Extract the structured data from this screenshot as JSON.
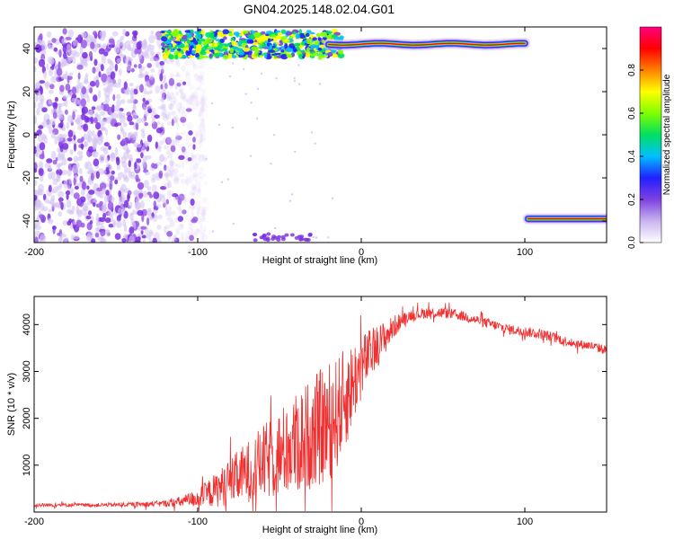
{
  "title": "GN04.2025.148.02.04.G01",
  "chart_data": [
    {
      "type": "heatmap",
      "title": "GN04.2025.148.02.04.G01",
      "xlabel": "Height of straight line (km)",
      "ylabel": "Frequency (Hz)",
      "xlim": [
        -200,
        150
      ],
      "ylim": [
        -50,
        50
      ],
      "x_ticks": [
        -200,
        -100,
        0,
        100
      ],
      "y_ticks": [
        -40,
        -20,
        0,
        20,
        40
      ],
      "x_tick_labels": [
        "-200",
        "-100",
        "0",
        "100"
      ],
      "y_tick_labels": [
        "-40",
        "-20",
        "0",
        "20",
        "40"
      ],
      "colorbar": {
        "label": "Normalized spectral amplitude",
        "range": [
          0,
          1
        ],
        "ticks": [
          0.0,
          0.2,
          0.4,
          0.6,
          0.8
        ],
        "tick_labels": [
          "0.0",
          "0.2",
          "0.4",
          "0.6",
          "0.8"
        ],
        "colormap": [
          "#ffffff",
          "#c8b4f0",
          "#8040e0",
          "#2020ff",
          "#00c0ff",
          "#00e060",
          "#80ff00",
          "#ffff00",
          "#ff8000",
          "#ff0000",
          "#ff0080"
        ]
      },
      "features": [
        {
          "description": "scattered noise",
          "x_range": [
            -200,
            -95
          ],
          "freq_range": [
            -50,
            48
          ],
          "level": 0.2
        },
        {
          "description": "main band",
          "x_range": [
            -120,
            100
          ],
          "freq": 42,
          "level": 0.85
        },
        {
          "description": "aliased band",
          "x_range": [
            100,
            150
          ],
          "freq": -39,
          "level": 0.9
        }
      ]
    },
    {
      "type": "line",
      "xlabel": "Height of straight line (km)",
      "ylabel": "SNR (10 * v/v)",
      "xlim": [
        -200,
        150
      ],
      "ylim": [
        0,
        4600
      ],
      "x_ticks": [
        -200,
        -100,
        0,
        100
      ],
      "y_ticks": [
        1000,
        2000,
        3000,
        4000
      ],
      "x_tick_labels": [
        "-200",
        "-100",
        "0",
        "100"
      ],
      "y_tick_labels": [
        "1000",
        "2000",
        "3000",
        "4000"
      ],
      "color": "#f03030",
      "series": [
        {
          "x": [
            -200,
            -180,
            -160,
            -140,
            -120,
            -110,
            -100,
            -90,
            -80,
            -70,
            -60,
            -50,
            -40,
            -30,
            -20,
            -15,
            -10,
            -5,
            0,
            5,
            10,
            15,
            20,
            25,
            30,
            40,
            50,
            60,
            70,
            80,
            90,
            100,
            110,
            120,
            130,
            140,
            150
          ],
          "y": [
            150,
            150,
            150,
            160,
            180,
            220,
            300,
            450,
            650,
            850,
            1050,
            1250,
            1450,
            1700,
            1900,
            2100,
            2400,
            2750,
            3100,
            3350,
            3550,
            3750,
            3950,
            4100,
            4200,
            4250,
            4250,
            4200,
            4100,
            4000,
            3900,
            3850,
            3800,
            3700,
            3600,
            3550,
            3450
          ],
          "noise": [
            40,
            40,
            40,
            50,
            70,
            120,
            200,
            350,
            500,
            650,
            800,
            950,
            1100,
            1200,
            1300,
            1200,
            1100,
            900,
            700,
            550,
            450,
            350,
            250,
            150,
            120,
            120,
            120,
            110,
            110,
            110,
            110,
            110,
            110,
            110,
            100,
            100,
            100
          ]
        }
      ]
    }
  ]
}
